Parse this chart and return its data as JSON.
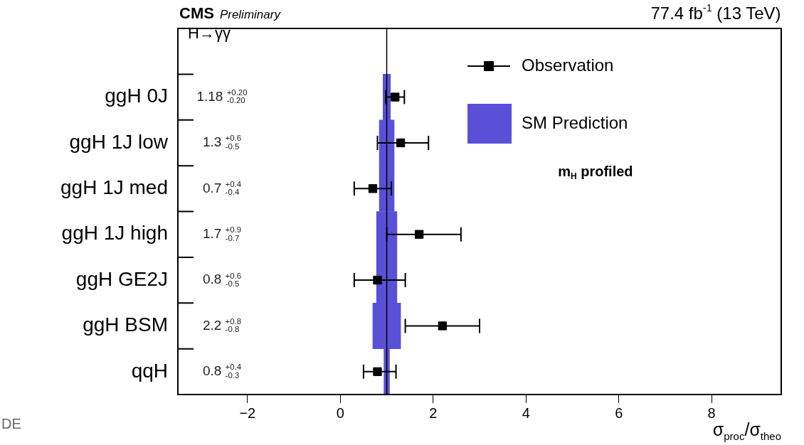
{
  "chart_data": {
    "type": "scatter",
    "orientation": "horizontal",
    "xlabel": "σ$_{proc}$/σ$_{theo}$",
    "categories": [
      "ggH 0J",
      "ggH 1J low",
      "ggH 1J med",
      "ggH 1J high",
      "ggH GE2J",
      "ggH BSM",
      "qqH"
    ],
    "xlim": [
      -3.5,
      9.5
    ],
    "xticks": [
      -2,
      0,
      2,
      4,
      6,
      8
    ],
    "grid": false,
    "legend": "top right",
    "marker": "square",
    "series": [
      {
        "name": "SM Prediction",
        "type": "bar",
        "color": "#5a50d8",
        "base": [
          0.92,
          0.84,
          0.84,
          0.78,
          0.78,
          0.7,
          0.94
        ],
        "values": [
          0.16,
          0.32,
          0.32,
          0.44,
          0.44,
          0.6,
          0.12
        ]
      },
      {
        "name": "Observation",
        "color": "#000000",
        "values": [
          1.18,
          1.3,
          0.7,
          1.7,
          0.8,
          2.2,
          0.8
        ],
        "errors": [
          [
            0.98,
            1.38
          ],
          [
            0.8,
            1.9
          ],
          [
            0.3,
            1.1
          ],
          [
            1.0,
            2.6
          ],
          [
            0.3,
            1.4
          ],
          [
            1.4,
            3.0
          ],
          [
            0.5,
            1.2
          ]
        ]
      }
    ],
    "ref_lines": [
      {
        "axis": "x",
        "value": 1,
        "color": "#000000"
      }
    ],
    "annotations": [
      "CMS",
      "Preliminary",
      "77.4 fb$^{-1}$ (13 TeV)",
      "H→γγ",
      "m$_{H}$ profiled",
      "DE",
      "1.18 $^{+0.20}$$_{-0.20}$",
      "1.3 $^{+0.6}$$_{-0.5}$",
      "0.7 $^{+0.4}$$_{-0.4}$",
      "1.7 $^{+0.9}$$_{-0.7}$",
      "0.8 $^{+0.6}$$_{-0.5}$",
      "2.2 $^{+0.8}$$_{-0.8}$",
      "0.8 $^{+0.4}$$_{-0.3}$"
    ]
  }
}
